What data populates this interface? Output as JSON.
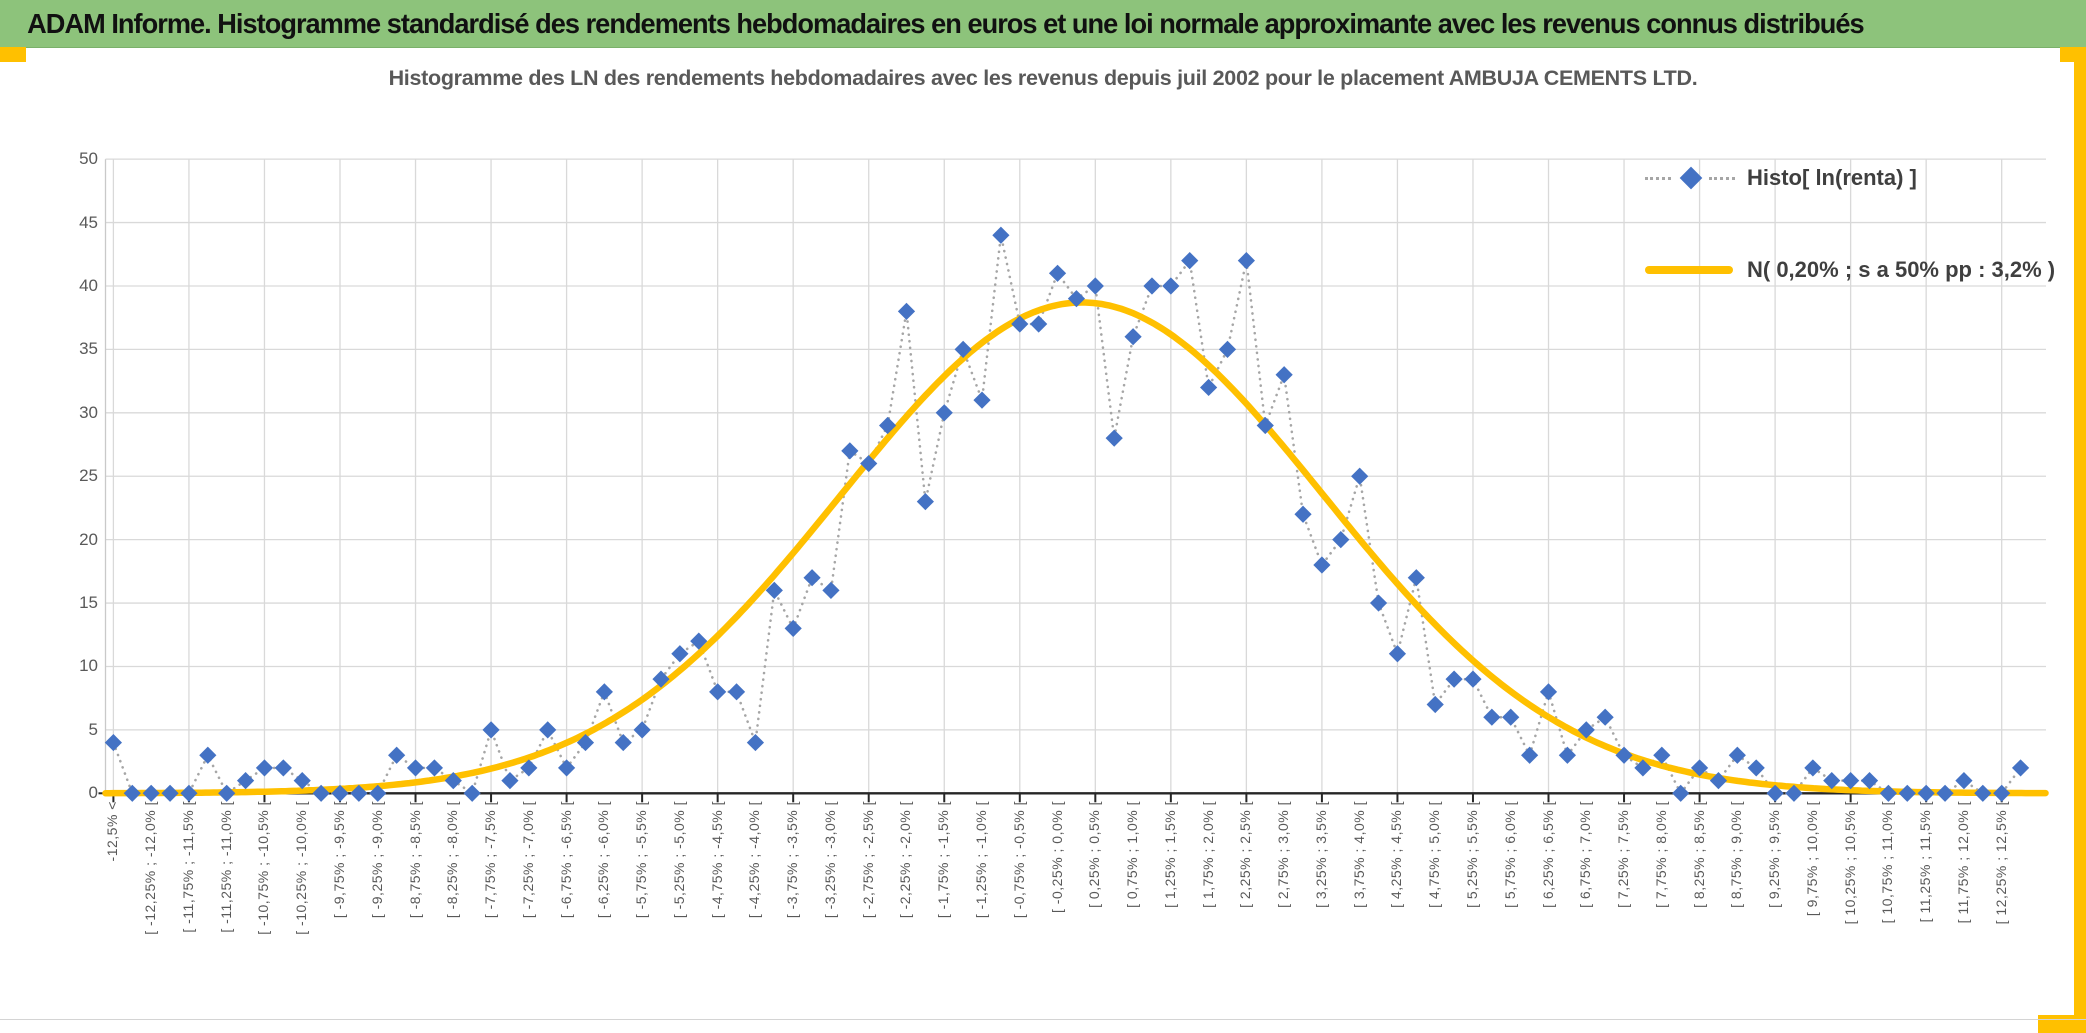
{
  "banner": {
    "text": "ADAM Informe. Histogramme standardisé des rendements hebdomadaires en euros et une loi normale approximante avec les revenus connus distribués"
  },
  "chart": {
    "title": "Histogramme des LN des rendements hebdomadaires avec les revenus depuis juil 2002 pour le placement AMBUJA CEMENTS  LTD.",
    "legend": [
      {
        "label": "Histo[ ln(renta) ]",
        "series": "histogram"
      },
      {
        "label": "N( 0,20% ; s a 50% pp : 3,2% )",
        "series": "normal-curve"
      }
    ],
    "colors": {
      "banner_bg": "#8DC37B",
      "accent_yellow": "#FFC000",
      "diamond_blue": "#4472C4",
      "curve_yellow": "#FFC000",
      "dotted_gray": "#A6A6A6",
      "gridline_gray": "#D9D9D9",
      "axis_black": "#262626",
      "label_gray": "#595959",
      "legend_text": "#3f3f3f"
    }
  },
  "chart_data": {
    "type": "line",
    "title": "Histogramme des LN des rendements hebdomadaires avec les revenus depuis juil 2002 pour le placement AMBUJA CEMENTS  LTD.",
    "xlabel": "",
    "ylabel": "",
    "ylim": [
      0,
      50
    ],
    "y_ticks": [
      0,
      5,
      10,
      15,
      20,
      25,
      30,
      35,
      40,
      45,
      50
    ],
    "grid": "on",
    "legend_position": "inside-top-right",
    "bin_width_pct": 0.25,
    "first_bin_center_pct": -12.625,
    "x_tick_labels": [
      "-12,5% <",
      "[ -12,25% ; -12,0% [",
      "[ -11,75% ; -11,5% [",
      "[ -11,25% ; -11,0% [",
      "[ -10,75% ; -10,5% [",
      "[ -10,25% ; -10,0% [",
      "[ -9,75% ; -9,5% [",
      "[ -9,25% ; -9,0% [",
      "[ -8,75% ; -8,5% [",
      "[ -8,25% ; -8,0% [",
      "[ -7,75% ; -7,5% [",
      "[ -7,25% ; -7,0% [",
      "[ -6,75% ; -6,5% [",
      "[ -6,25% ; -6,0% [",
      "[ -5,75% ; -5,5% [",
      "[ -5,25% ; -5,0% [",
      "[ -4,75% ; -4,5% [",
      "[ -4,25% ; -4,0% [",
      "[ -3,75% ; -3,5% [",
      "[ -3,25% ; -3,0% [",
      "[ -2,75% ; -2,5% [",
      "[ -2,25% ; -2,0% [",
      "[ -1,75% ; -1,5% [",
      "[ -1,25% ; -1,0% [",
      "[ -0,75% ; -0,5% [",
      "[ -0,25% ; 0,0% [",
      "[ 0,25% ; 0,5% [",
      "[ 0,75% ; 1,0% [",
      "[ 1,25% ; 1,5% [",
      "[ 1,75% ; 2,0% [",
      "[ 2,25% ; 2,5% [",
      "[ 2,75% ; 3,0% [",
      "[ 3,25% ; 3,5% [",
      "[ 3,75% ; 4,0% [",
      "[ 4,25% ; 4,5% [",
      "[ 4,75% ; 5,0% [",
      "[ 5,25% ; 5,5% [",
      "[ 5,75% ; 6,0% [",
      "[ 6,25% ; 6,5% [",
      "[ 6,75% ; 7,0% [",
      "[ 7,25% ; 7,5% [",
      "[ 7,75% ; 8,0% [",
      "[ 8,25% ; 8,5% [",
      "[ 8,75% ; 9,0% [",
      "[ 9,25% ; 9,5% [",
      "[ 9,75% ; 10,0% [",
      "[ 10,25% ; 10,5% [",
      "[ 10,75% ; 11,0% [",
      "[ 11,25% ; 11,5% [",
      "[ 11,75% ; 12,0% [",
      "[ 12,25% ; 12,5% ["
    ],
    "series": [
      {
        "name": "Histo[ ln(renta) ]",
        "marker": "diamond",
        "line": "dotted",
        "values": [
          4,
          0,
          0,
          0,
          0,
          3,
          0,
          1,
          2,
          2,
          1,
          0,
          0,
          0,
          0,
          3,
          2,
          2,
          1,
          0,
          5,
          1,
          2,
          5,
          2,
          4,
          8,
          4,
          5,
          9,
          11,
          12,
          8,
          8,
          4,
          16,
          13,
          17,
          16,
          27,
          26,
          29,
          38,
          23,
          30,
          35,
          31,
          44,
          37,
          37,
          41,
          39,
          40,
          28,
          36,
          40,
          40,
          42,
          32,
          35,
          42,
          29,
          33,
          22,
          18,
          20,
          25,
          15,
          11,
          17,
          7,
          9,
          9,
          6,
          6,
          3,
          8,
          3,
          5,
          6,
          3,
          2,
          3,
          0,
          2,
          1,
          3,
          2,
          0,
          0,
          2,
          1,
          1,
          1,
          0,
          0,
          0,
          0,
          1,
          0,
          0,
          2
        ]
      },
      {
        "name": "N( 0,20% ; s a 50% pp : 3,2% )",
        "marker": "none",
        "line": "solid",
        "normal_mean_pct": 0.2,
        "normal_sigma_pct": 3.2,
        "peak_value": 38.7
      }
    ]
  }
}
